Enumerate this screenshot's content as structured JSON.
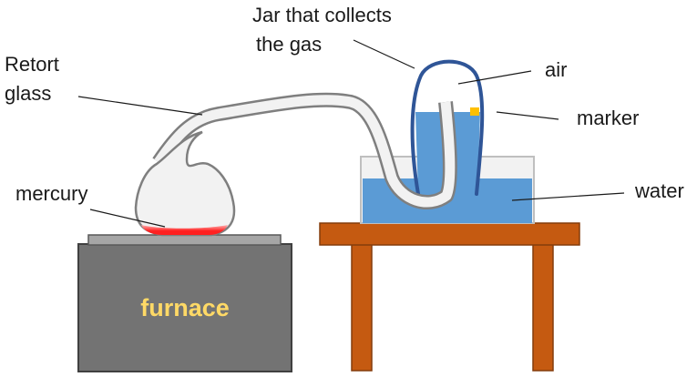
{
  "labels": {
    "jar_line1": "Jar that collects",
    "jar_line2": "the gas",
    "retort_line1": "Retort",
    "retort_line2": "glass",
    "air": "air",
    "marker": "marker",
    "mercury": "mercury",
    "water": "water",
    "furnace": "furnace"
  },
  "colors": {
    "furnace_body": "#737373",
    "furnace_top": "#a6a6a6",
    "furnace_text": "#ffd966",
    "mercury": "#ff2020",
    "water": "#5b9bd5",
    "jar_outline": "#2f5597",
    "marker": "#ffc000",
    "table": "#c55a11",
    "glass_outline": "#7f7f7f",
    "glass_fill": "#f2f2f2"
  },
  "icons": {
    "retort": "retort-glass-icon",
    "jar": "collecting-jar-icon",
    "furnace": "furnace-icon",
    "table": "table-icon"
  }
}
